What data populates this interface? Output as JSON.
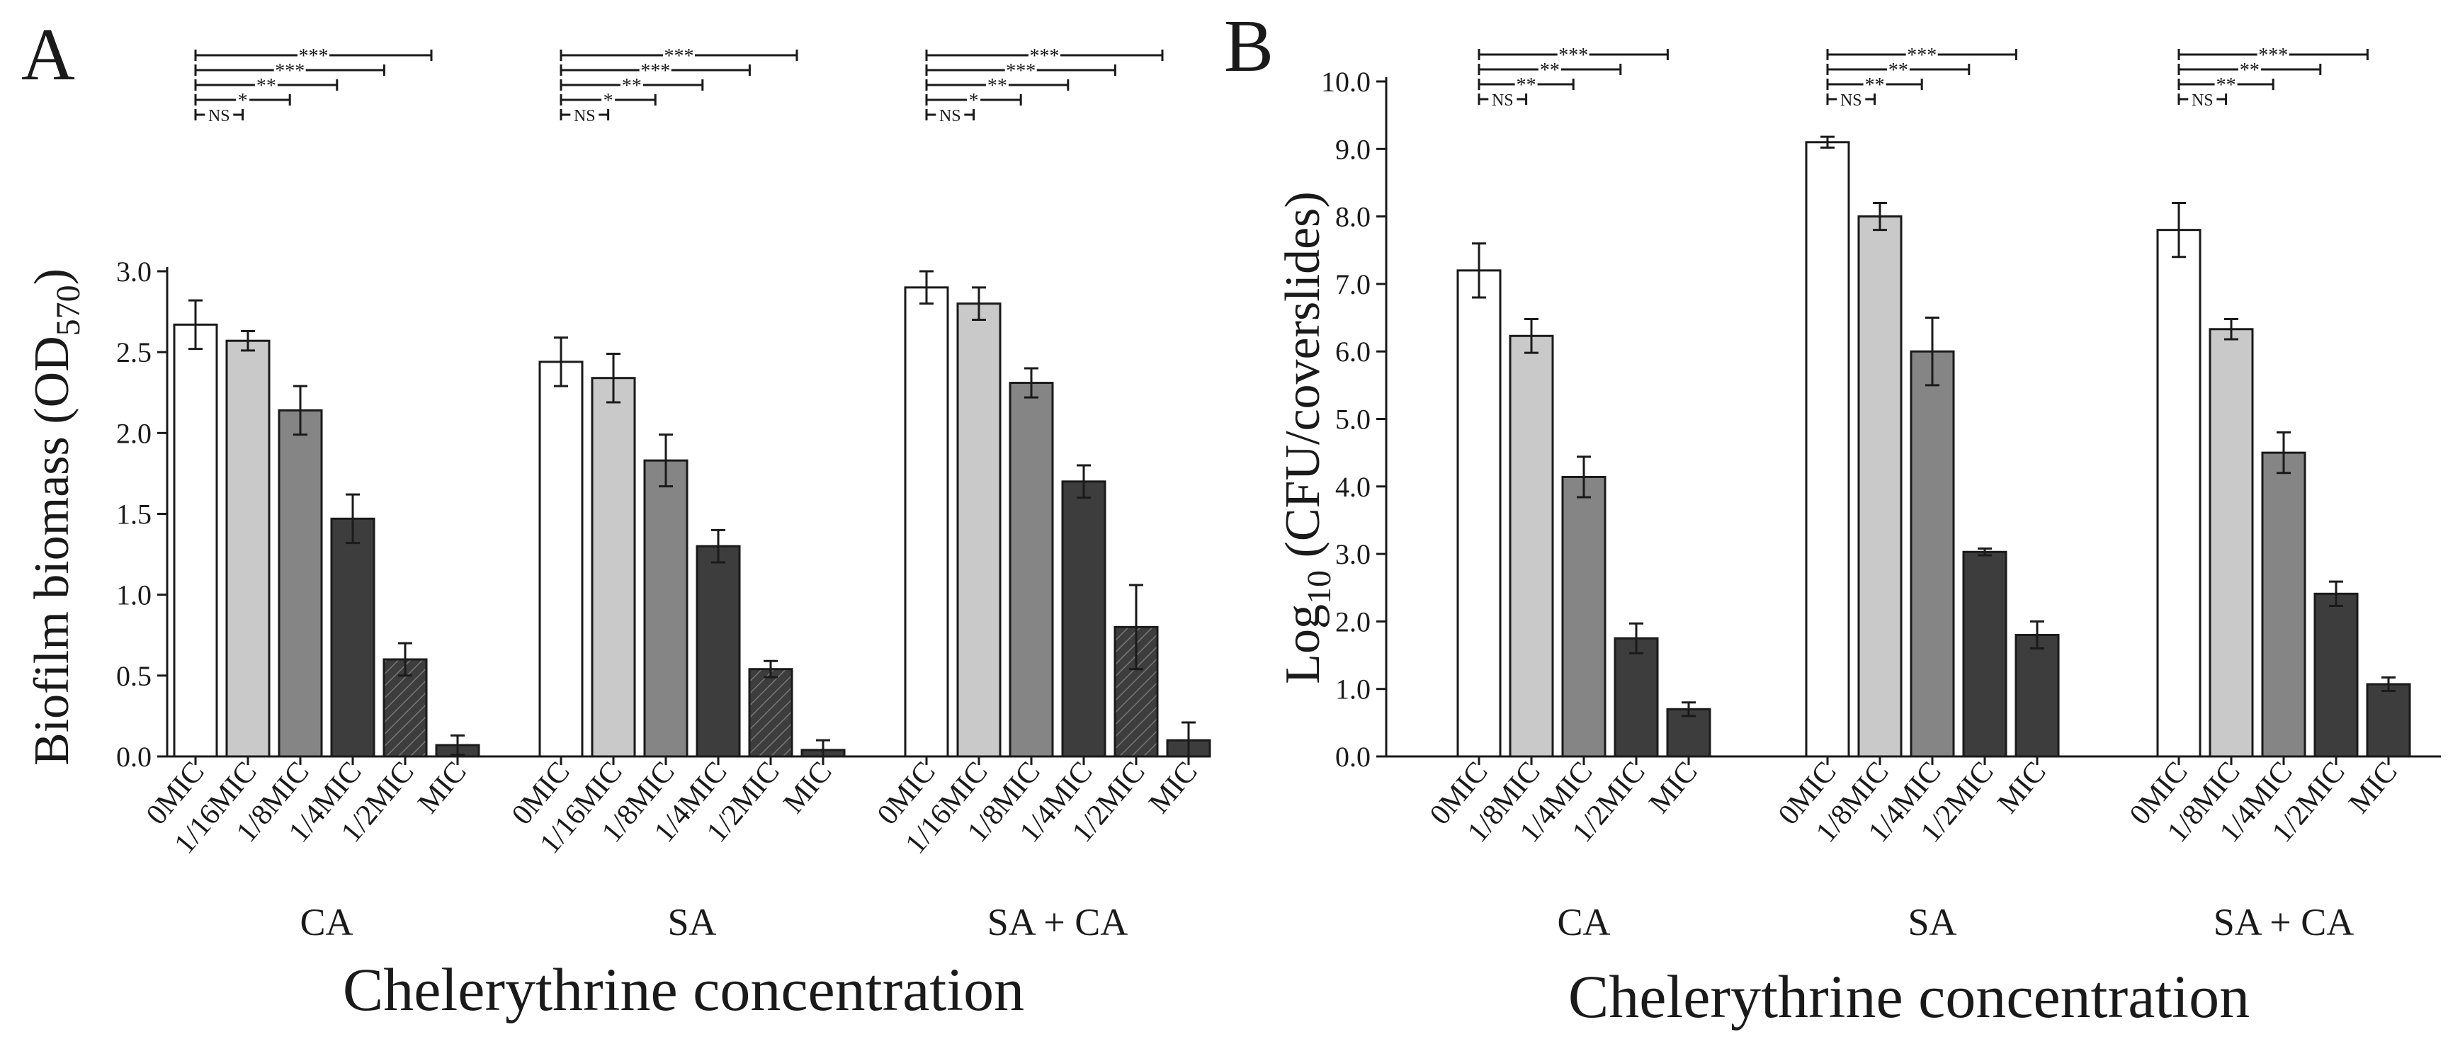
{
  "colors": {
    "bar_0": "#ffffff",
    "bar_1": "#c9c9c9",
    "bar_2": "#858585",
    "bar_3": "#3d3d3d",
    "axis": "#1a1a1a",
    "hatch": "#2a2a2a"
  },
  "chart_data": [
    {
      "type": "bar",
      "panel_label": "A",
      "ylabel_main": "Biofilm biomass (OD",
      "ylabel_sub": "570",
      "ylabel_end": ")",
      "xlabel": "Chelerythrine concentration",
      "ylim": [
        0,
        3.0
      ],
      "yticks": [
        "0.0",
        "0.5",
        "1.0",
        "1.5",
        "2.0",
        "2.5",
        "3.0"
      ],
      "categories": [
        "0MIC",
        "1/16MIC",
        "1/8MIC",
        "1/4MIC",
        "1/2MIC",
        "MIC"
      ],
      "fill_styles": [
        "white",
        "light",
        "mid",
        "dark",
        "hatch",
        "dark"
      ],
      "groups": [
        {
          "name": "CA",
          "values": [
            2.67,
            2.57,
            2.14,
            1.47,
            0.6,
            0.07
          ],
          "errors": [
            0.15,
            0.06,
            0.15,
            0.15,
            0.1,
            0.06
          ]
        },
        {
          "name": "SA",
          "values": [
            2.44,
            2.34,
            1.83,
            1.3,
            0.54,
            0.04
          ],
          "errors": [
            0.15,
            0.15,
            0.16,
            0.1,
            0.05,
            0.06
          ]
        },
        {
          "name": "SA + CA",
          "values": [
            2.9,
            2.8,
            2.31,
            1.7,
            0.8,
            0.1
          ],
          "errors": [
            0.1,
            0.1,
            0.09,
            0.1,
            0.26,
            0.11
          ]
        }
      ],
      "significance": [
        "NS",
        "*",
        "**",
        "***",
        "***"
      ]
    },
    {
      "type": "bar",
      "panel_label": "B",
      "ylabel_main": "Log",
      "ylabel_sub": "10",
      "ylabel_end": " (CFU/coverslides)",
      "xlabel": "Chelerythrine concentration",
      "ylim": [
        0,
        10.0
      ],
      "yticks": [
        "0.0",
        "1.0",
        "2.0",
        "3.0",
        "4.0",
        "5.0",
        "6.0",
        "7.0",
        "8.0",
        "9.0",
        "10.0"
      ],
      "categories": [
        "0MIC",
        "1/8MIC",
        "1/4MIC",
        "1/2MIC",
        "MIC"
      ],
      "fill_styles": [
        "white",
        "light",
        "mid",
        "dark",
        "dark"
      ],
      "groups": [
        {
          "name": "CA",
          "values": [
            7.2,
            6.23,
            4.14,
            1.75,
            0.7
          ],
          "errors": [
            0.4,
            0.25,
            0.3,
            0.22,
            0.1
          ]
        },
        {
          "name": "SA",
          "values": [
            9.1,
            8.0,
            6.0,
            3.03,
            1.8
          ],
          "errors": [
            0.08,
            0.2,
            0.5,
            0.05,
            0.2
          ]
        },
        {
          "name": "SA + CA",
          "values": [
            7.8,
            6.33,
            4.5,
            2.41,
            1.07
          ],
          "errors": [
            0.4,
            0.15,
            0.3,
            0.18,
            0.1
          ]
        }
      ],
      "significance": [
        "NS",
        "**",
        "**",
        "***"
      ]
    }
  ]
}
